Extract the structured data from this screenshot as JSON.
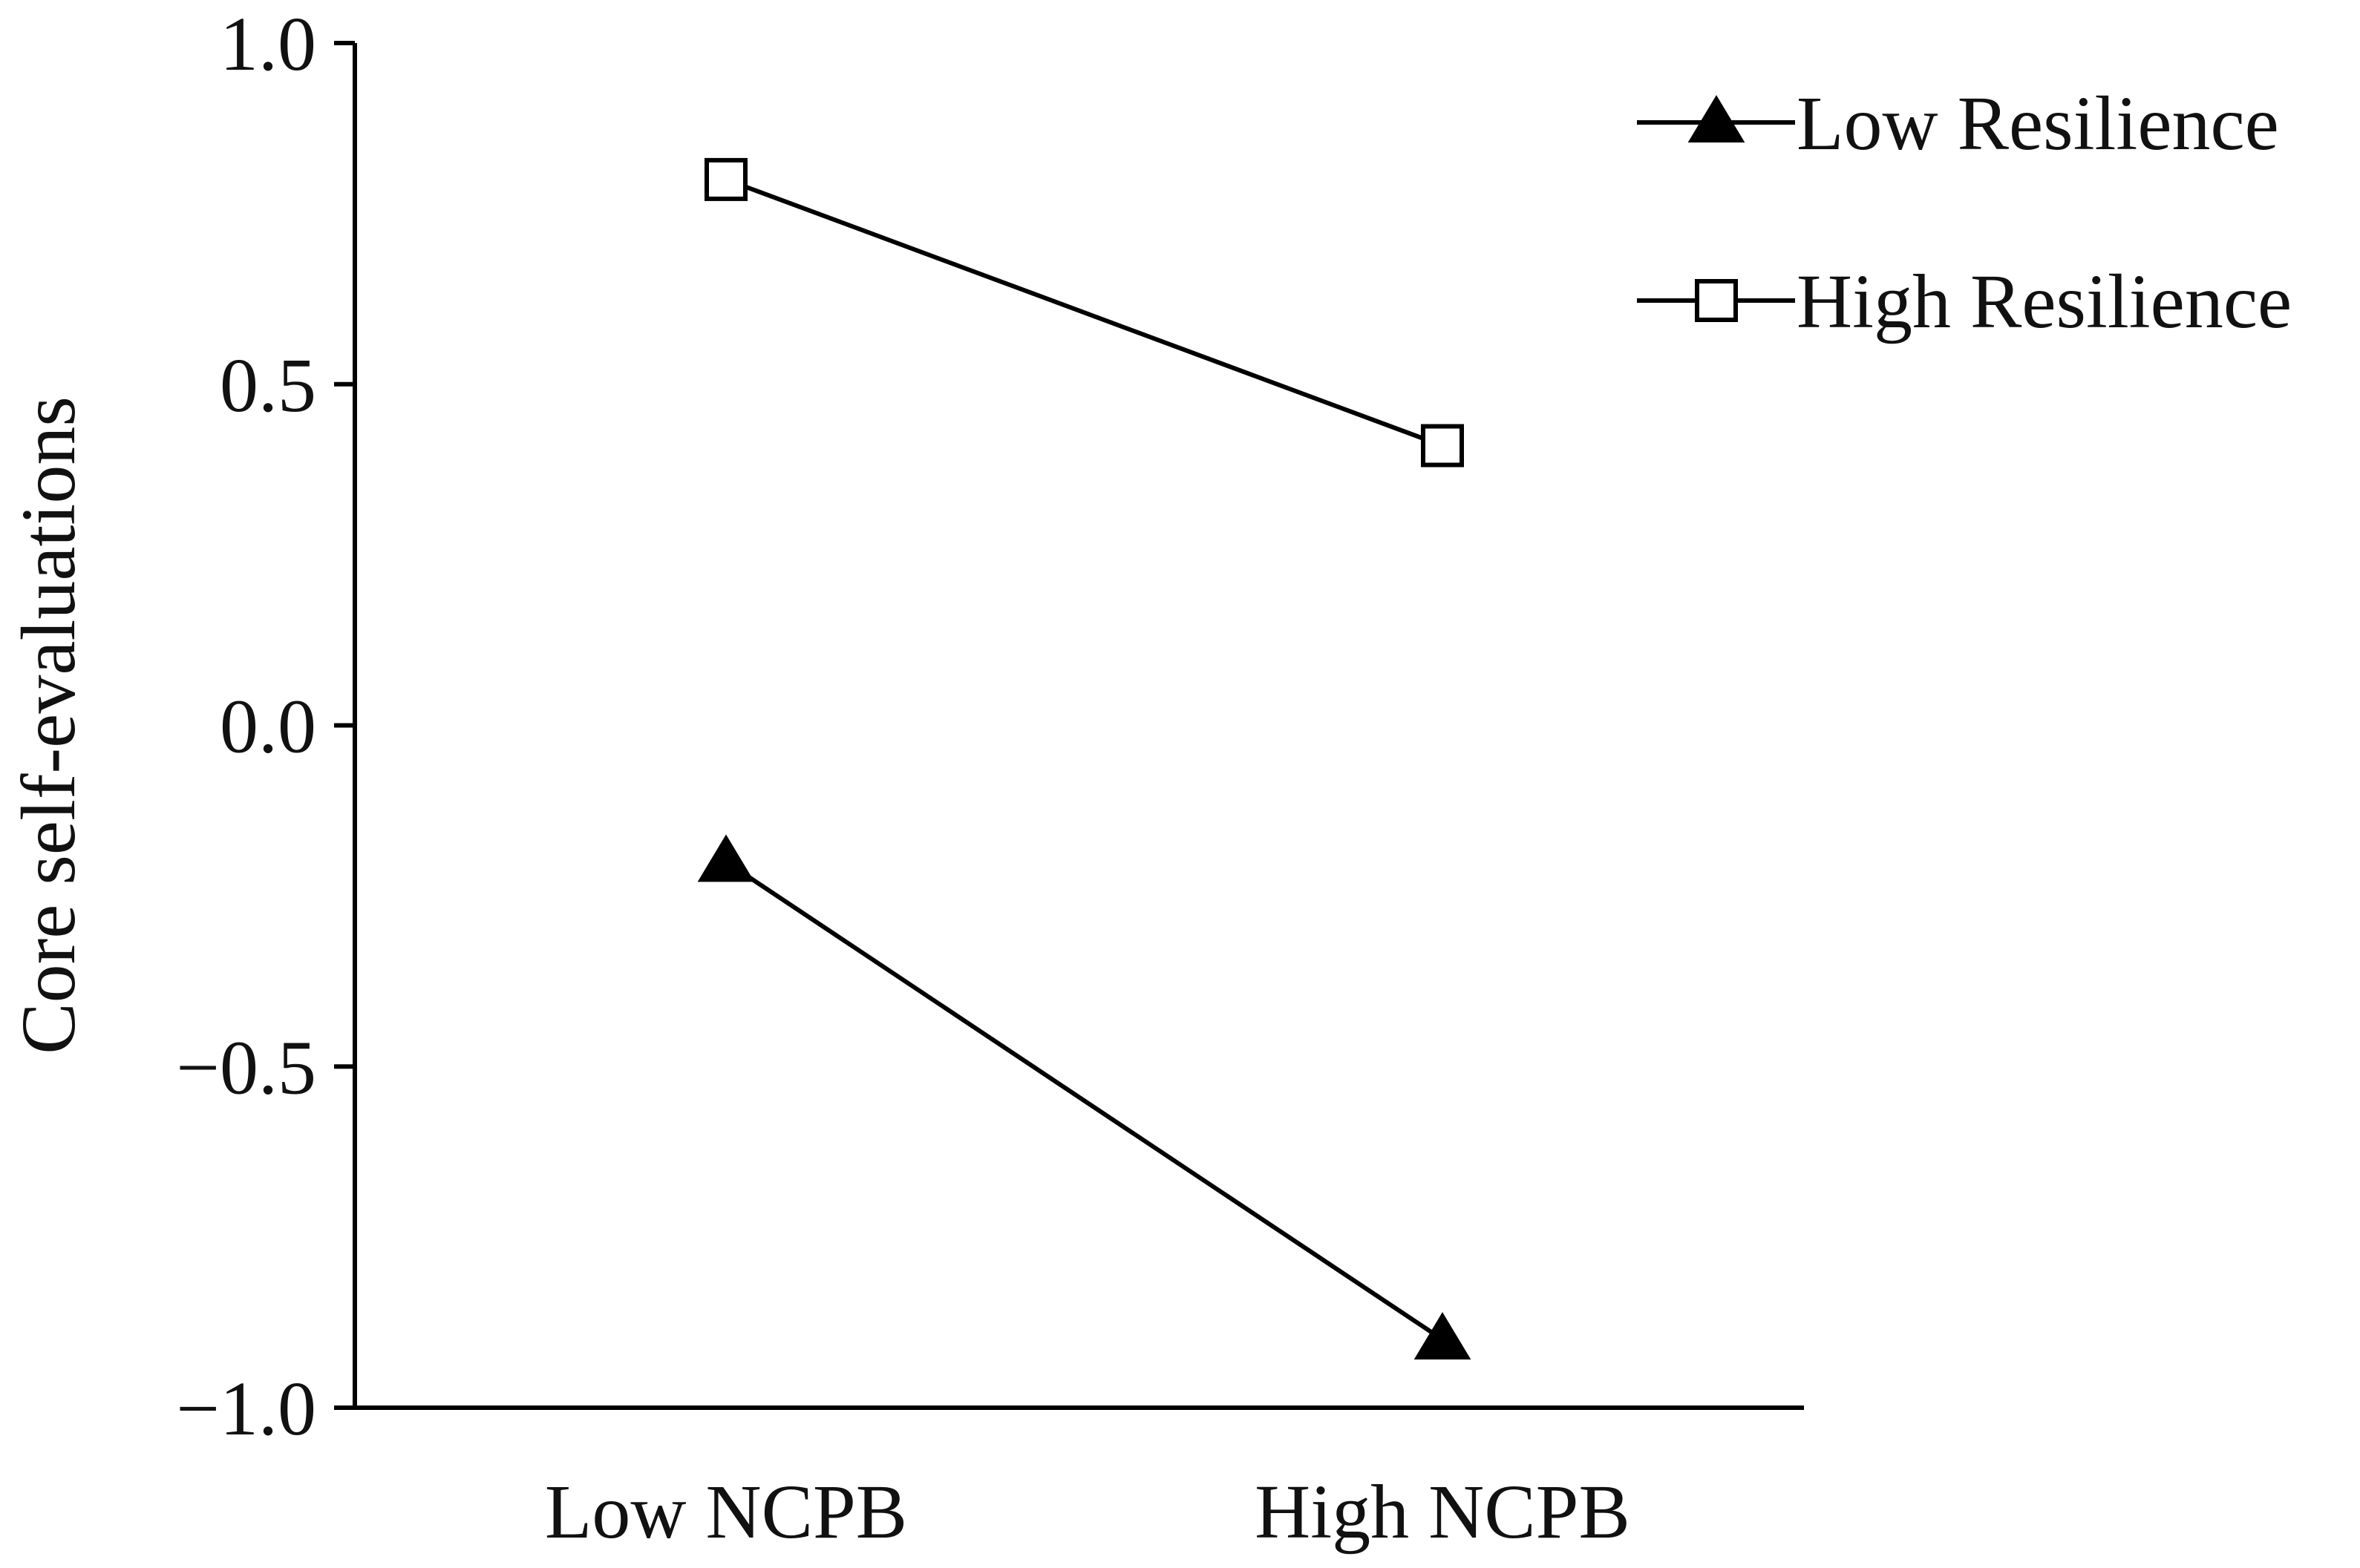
{
  "chart_data": {
    "type": "line",
    "title": "",
    "xlabel": "",
    "ylabel": "Core self-evaluations",
    "categories": [
      "Low NCPB",
      "High NCPB"
    ],
    "ylim": [
      -1.0,
      1.0
    ],
    "yticks": [
      1.0,
      0.5,
      0.0,
      -0.5,
      -1.0
    ],
    "ytick_labels": [
      "1.0",
      "0.5",
      "0.0",
      "−0.5",
      "−1.0"
    ],
    "grid": false,
    "legend_position": "top-right",
    "series": [
      {
        "name": "Low Resilience",
        "marker": "filled-triangle",
        "color": "#000000",
        "values": [
          -0.2,
          -0.9
        ]
      },
      {
        "name": "High Resilience",
        "marker": "open-square",
        "color": "#000000",
        "values": [
          0.8,
          0.41
        ]
      }
    ]
  }
}
